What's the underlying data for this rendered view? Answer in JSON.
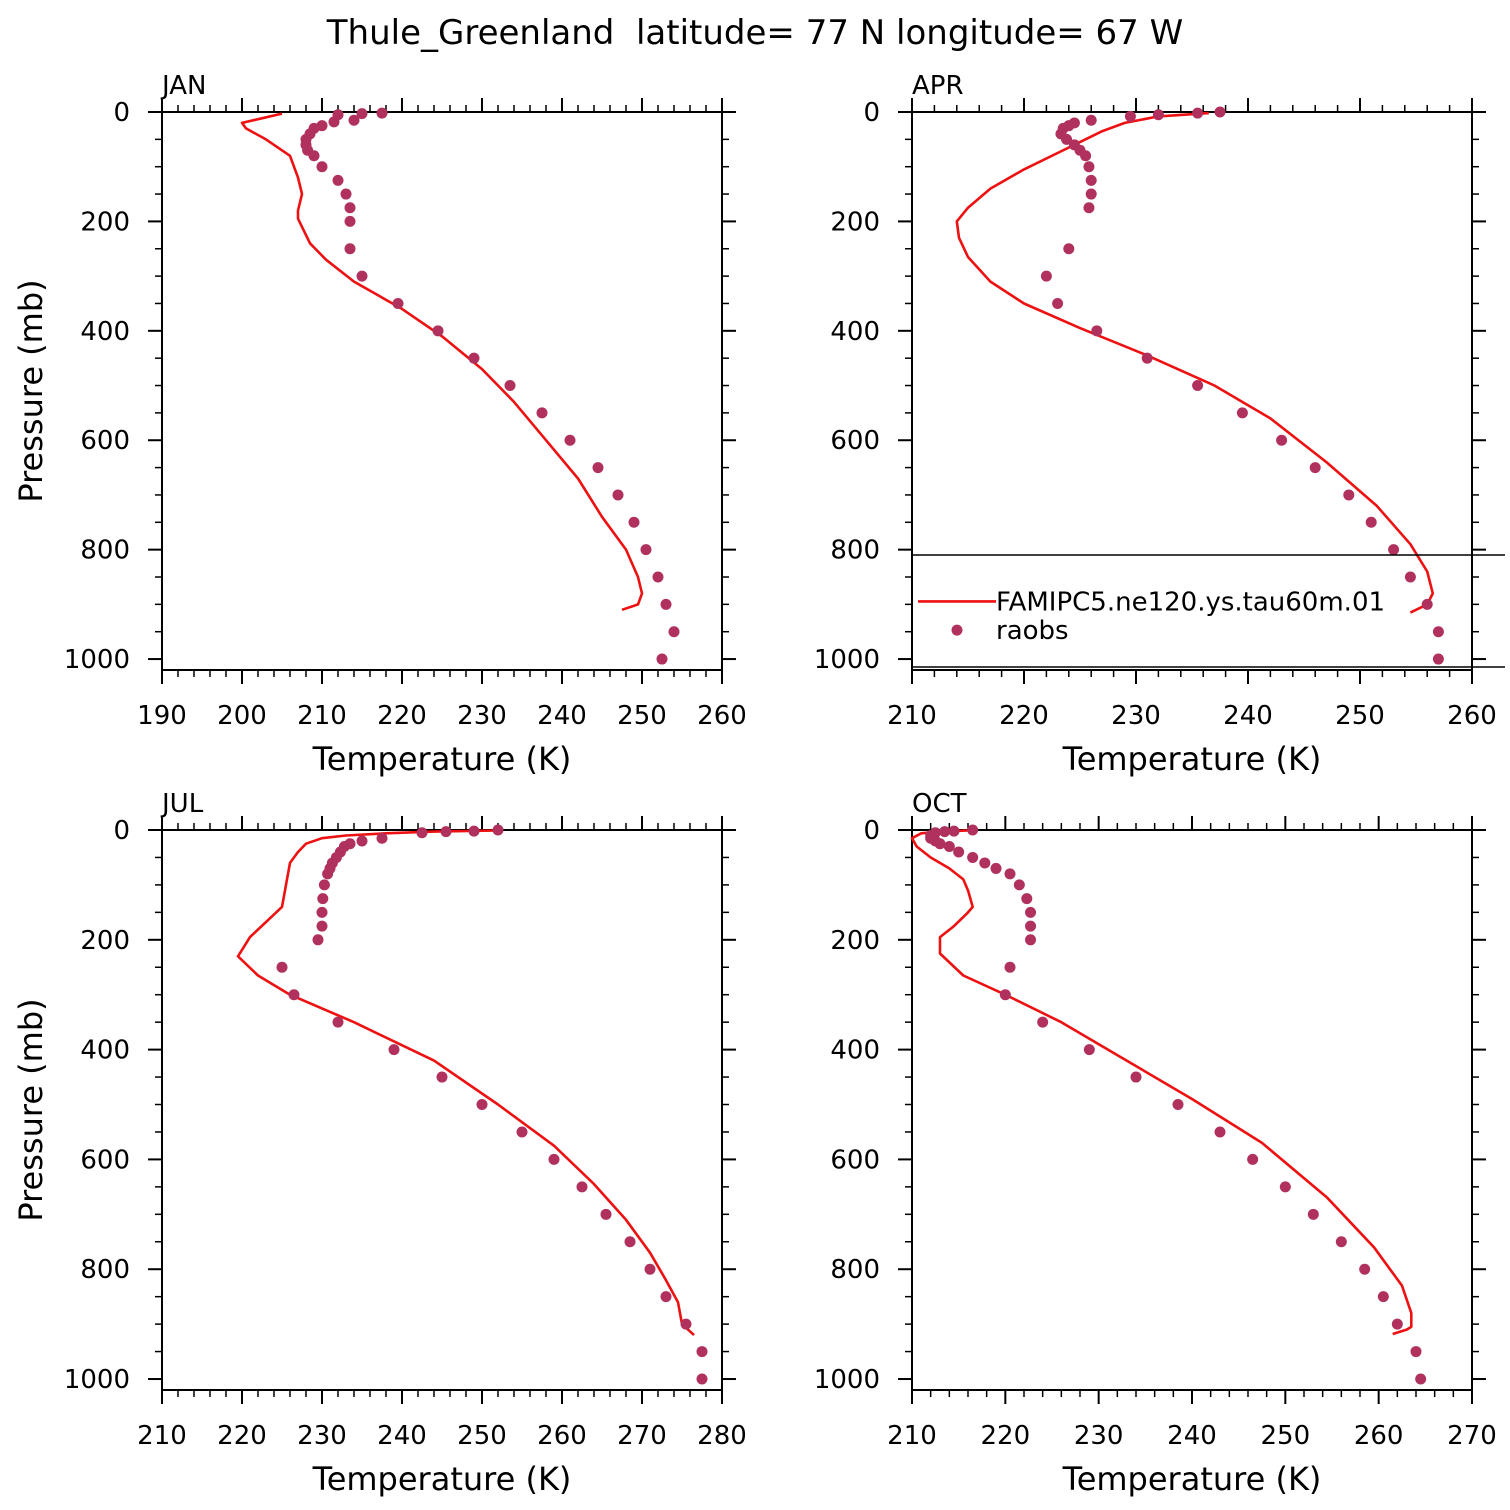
{
  "title": "Thule_Greenland  latitude= 77 N longitude= 67 W",
  "legend": {
    "line_label": "FAMIPC5.ne120.ys.tau60m.01",
    "dot_label": "raobs"
  },
  "colors": {
    "model_line": "#ee1111",
    "obs_dots": "#b0305e"
  },
  "chart_data": [
    {
      "type": "line",
      "panel": "JAN",
      "xlabel": "Temperature (K)",
      "ylabel": "Pressure (mb)",
      "xlim": [
        190,
        260
      ],
      "ylim": [
        1020,
        0
      ],
      "xticks": [
        190,
        200,
        210,
        220,
        230,
        240,
        250,
        260
      ],
      "yticks": [
        0,
        200,
        400,
        600,
        800,
        1000
      ],
      "series": [
        {
          "kind": "line",
          "x": [
            205,
            200,
            200.5,
            203,
            206,
            207,
            207.5,
            207,
            207,
            208.5,
            210.5,
            214,
            220,
            225,
            230,
            234,
            238,
            242,
            245,
            248,
            249.5,
            250,
            249.5,
            247.5
          ],
          "y": [
            3,
            20,
            30,
            50,
            80,
            120,
            150,
            180,
            195,
            240,
            270,
            310,
            360,
            410,
            470,
            530,
            600,
            670,
            740,
            800,
            850,
            880,
            900,
            910
          ]
        },
        {
          "kind": "scatter",
          "name": "raobs",
          "x": [
            217.5,
            215,
            212,
            214,
            211.5,
            210,
            209,
            208.5,
            208,
            208,
            208.2,
            209,
            210,
            212,
            213,
            213.5,
            213.5,
            213.5,
            215,
            219.5,
            224.5,
            229,
            233.5,
            237.5,
            241,
            244.5,
            247,
            249,
            250.5,
            252,
            253,
            254,
            252.5
          ],
          "y": [
            2,
            3,
            5,
            15,
            18,
            25,
            30,
            40,
            50,
            60,
            70,
            80,
            100,
            125,
            150,
            175,
            200,
            250,
            300,
            350,
            400,
            450,
            500,
            550,
            600,
            650,
            700,
            750,
            800,
            850,
            900,
            950,
            1000
          ]
        }
      ]
    },
    {
      "type": "line",
      "panel": "APR",
      "xlabel": "Temperature (K)",
      "ylabel": "",
      "xlim": [
        210,
        260
      ],
      "ylim": [
        1020,
        0
      ],
      "xticks": [
        210,
        220,
        230,
        240,
        250,
        260
      ],
      "yticks": [
        0,
        200,
        400,
        600,
        800,
        1000
      ],
      "series": [
        {
          "kind": "line",
          "x": [
            236.5,
            232,
            229,
            227,
            225,
            223,
            220,
            217,
            215,
            214,
            214.2,
            215,
            217,
            220,
            225,
            231,
            237,
            242,
            247,
            251.5,
            254.5,
            256,
            256.5,
            256,
            254.5
          ],
          "y": [
            2,
            8,
            20,
            35,
            55,
            75,
            105,
            140,
            175,
            200,
            230,
            265,
            310,
            350,
            395,
            445,
            500,
            560,
            640,
            720,
            790,
            840,
            880,
            900,
            915
          ]
        },
        {
          "kind": "scatter",
          "name": "raobs",
          "x": [
            237.5,
            235.5,
            232,
            229.5,
            226,
            224.5,
            224,
            223.5,
            223.3,
            223.8,
            224.5,
            225,
            225.5,
            225.8,
            226,
            226,
            225.8,
            224,
            222,
            223,
            226.5,
            231,
            235.5,
            239.5,
            243,
            246,
            249,
            251,
            253,
            254.5,
            256,
            257,
            257
          ],
          "y": [
            0,
            2,
            5,
            8,
            15,
            20,
            25,
            30,
            40,
            50,
            60,
            70,
            80,
            100,
            125,
            150,
            175,
            250,
            300,
            350,
            400,
            450,
            500,
            550,
            600,
            650,
            700,
            750,
            800,
            850,
            900,
            950,
            1000
          ]
        }
      ]
    },
    {
      "type": "line",
      "panel": "JUL",
      "xlabel": "Temperature (K)",
      "ylabel": "Pressure (mb)",
      "xlim": [
        210,
        280
      ],
      "ylim": [
        1020,
        0
      ],
      "xticks": [
        210,
        220,
        230,
        240,
        250,
        260,
        270,
        280
      ],
      "yticks": [
        0,
        200,
        400,
        600,
        800,
        1000
      ],
      "series": [
        {
          "kind": "line",
          "x": [
            252,
            244,
            238,
            233,
            230,
            228,
            227,
            226,
            225,
            221,
            219.5,
            222,
            226,
            234,
            244,
            252,
            259,
            264,
            268,
            271,
            273,
            274.5,
            275,
            276.5
          ],
          "y": [
            1,
            3,
            6,
            10,
            15,
            25,
            40,
            60,
            140,
            195,
            230,
            265,
            300,
            350,
            420,
            500,
            575,
            645,
            710,
            770,
            820,
            860,
            900,
            920
          ]
        },
        {
          "kind": "scatter",
          "name": "raobs",
          "x": [
            252,
            249,
            245.5,
            242.5,
            237.5,
            235,
            233.5,
            232.8,
            232.3,
            231.8,
            231.3,
            231,
            230.7,
            230.3,
            230.1,
            230,
            230,
            229.5,
            225,
            226.5,
            232,
            239,
            245,
            250,
            255,
            259,
            262.5,
            265.5,
            268.5,
            271,
            273,
            275.5,
            277.5,
            277.5
          ],
          "y": [
            0,
            2,
            3,
            5,
            15,
            20,
            25,
            30,
            40,
            50,
            60,
            70,
            80,
            100,
            125,
            150,
            175,
            200,
            250,
            300,
            350,
            400,
            450,
            500,
            550,
            600,
            650,
            700,
            750,
            800,
            850,
            900,
            950,
            1000
          ]
        }
      ]
    },
    {
      "type": "line",
      "panel": "OCT",
      "xlabel": "Temperature (K)",
      "ylabel": "",
      "xlim": [
        210,
        270
      ],
      "ylim": [
        1020,
        0
      ],
      "xticks": [
        210,
        220,
        230,
        240,
        250,
        260,
        270
      ],
      "yticks": [
        0,
        200,
        400,
        600,
        800,
        1000
      ],
      "series": [
        {
          "kind": "line",
          "x": [
            216,
            213,
            211,
            210,
            210.5,
            212,
            214,
            215.5,
            216,
            216.5,
            216,
            214.5,
            213,
            213,
            215.5,
            220,
            226,
            232,
            240,
            247.5,
            254.5,
            259.5,
            262.5,
            263.5,
            263.5,
            263,
            261.5
          ],
          "y": [
            1,
            3,
            6,
            15,
            30,
            50,
            70,
            90,
            110,
            140,
            150,
            175,
            195,
            225,
            265,
            300,
            350,
            410,
            490,
            570,
            670,
            760,
            830,
            880,
            905,
            910,
            918
          ]
        },
        {
          "kind": "scatter",
          "name": "raobs",
          "x": [
            216.5,
            214.5,
            213.5,
            212.5,
            212,
            212,
            212.5,
            213,
            214,
            215,
            216.5,
            217.8,
            219,
            220.5,
            221.5,
            222.3,
            222.7,
            222.7,
            222.7,
            220.5,
            220,
            224,
            229,
            234,
            238.5,
            243,
            246.5,
            250,
            253,
            256,
            258.5,
            260.5,
            262,
            264,
            264.5
          ],
          "y": [
            0,
            2,
            3,
            5,
            10,
            15,
            20,
            25,
            30,
            40,
            50,
            60,
            70,
            80,
            100,
            125,
            150,
            175,
            200,
            250,
            300,
            350,
            400,
            450,
            500,
            550,
            600,
            650,
            700,
            750,
            800,
            850,
            900,
            950,
            1000
          ]
        }
      ]
    }
  ]
}
